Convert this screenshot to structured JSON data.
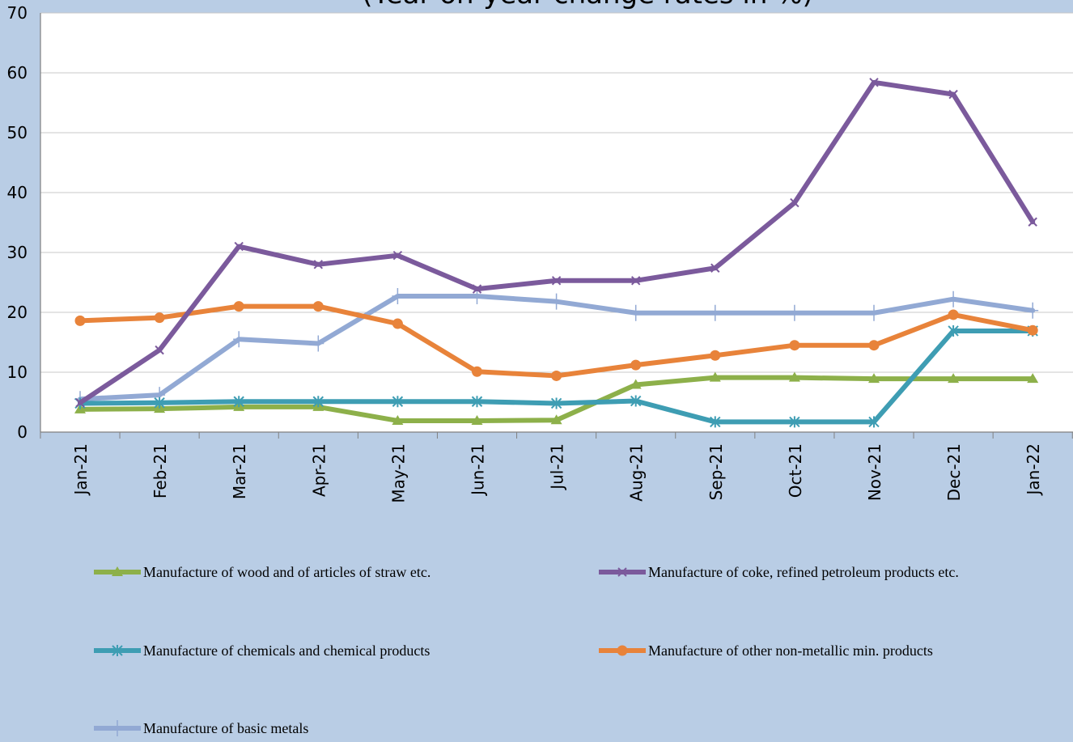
{
  "chart_data": {
    "type": "line",
    "title": "(Year-on-year change rates in %)",
    "ylim": [
      0,
      70
    ],
    "yticks": [
      "0",
      "10",
      "20",
      "30",
      "40",
      "50",
      "60",
      "70"
    ],
    "categories": [
      "Jan-21",
      "Feb-21",
      "Mar-21",
      "Apr-21",
      "May-21",
      "Jun-21",
      "Jul-21",
      "Aug-21",
      "Sep-21",
      "Oct-21",
      "Nov-21",
      "Dec-21",
      "Jan-22"
    ],
    "grid": true,
    "legend_position": "bottom",
    "series": [
      {
        "name": "Manufacture of wood and of articles of straw etc.",
        "color": "#8db04a",
        "marker": "triangle",
        "values": [
          3.8,
          3.9,
          4.2,
          4.2,
          1.9,
          1.9,
          2.0,
          7.9,
          9.1,
          9.1,
          8.9,
          8.9,
          8.9
        ]
      },
      {
        "name": "Manufacture of coke, refined petroleum products etc.",
        "color": "#7b5a9c",
        "marker": "x",
        "values": [
          4.9,
          13.7,
          31.0,
          28.0,
          29.5,
          23.9,
          25.3,
          25.3,
          27.4,
          38.3,
          58.4,
          56.4,
          35.1
        ]
      },
      {
        "name": "Manufacture of chemicals and chemical products",
        "color": "#3e9db3",
        "marker": "star",
        "values": [
          4.8,
          4.9,
          5.1,
          5.1,
          5.1,
          5.1,
          4.8,
          5.2,
          1.7,
          1.7,
          1.7,
          16.9,
          16.9
        ]
      },
      {
        "name": "Manufacture of other non-metallic min. products",
        "color": "#e8833a",
        "marker": "circle",
        "values": [
          18.6,
          19.1,
          21.0,
          21.0,
          18.1,
          10.1,
          9.4,
          11.2,
          12.8,
          14.5,
          14.5,
          19.6,
          17.0
        ]
      },
      {
        "name": "Manufacture of basic metals",
        "color": "#92a9d4",
        "marker": "plus",
        "values": [
          5.5,
          6.2,
          15.5,
          14.8,
          22.7,
          22.7,
          21.8,
          19.9,
          19.9,
          19.9,
          19.9,
          22.2,
          20.3
        ]
      }
    ]
  }
}
